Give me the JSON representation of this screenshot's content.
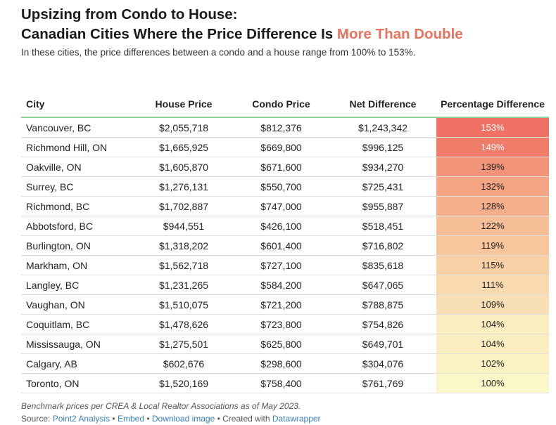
{
  "title_line1": "Upsizing from Condo to House:",
  "title_line2_start": "Canadian Cities Where the Price Difference Is ",
  "title_line2_highlight": "More Than Double",
  "subtitle": "In these cities, the price differences between a condo and a house range from 100% to 153%.",
  "colors": {
    "highlight": "#e8735f",
    "header_rule": "#8fd4a0",
    "heat_high": "#ef7264",
    "heat_low": "#fbf7c8",
    "link": "#3b7fc4"
  },
  "chart_data": {
    "type": "table",
    "columns": [
      "City",
      "House Price",
      "Condo Price",
      "Net Difference",
      "Percentage Difference"
    ],
    "rows": [
      {
        "city": "Vancouver, BC",
        "house": "$2,055,718",
        "condo": "$812,376",
        "net": "$1,243,342",
        "pct": "153%",
        "pct_value": 153
      },
      {
        "city": "Richmond Hill, ON",
        "house": "$1,665,925",
        "condo": "$669,800",
        "net": "$996,125",
        "pct": "149%",
        "pct_value": 149
      },
      {
        "city": "Oakville, ON",
        "house": "$1,605,870",
        "condo": "$671,600",
        "net": "$934,270",
        "pct": "139%",
        "pct_value": 139
      },
      {
        "city": "Surrey, BC",
        "house": "$1,276,131",
        "condo": "$550,700",
        "net": "$725,431",
        "pct": "132%",
        "pct_value": 132
      },
      {
        "city": "Richmond, BC",
        "house": "$1,702,887",
        "condo": "$747,000",
        "net": "$955,887",
        "pct": "128%",
        "pct_value": 128
      },
      {
        "city": "Abbotsford, BC",
        "house": "$944,551",
        "condo": "$426,100",
        "net": "$518,451",
        "pct": "122%",
        "pct_value": 122
      },
      {
        "city": "Burlington, ON",
        "house": "$1,318,202",
        "condo": "$601,400",
        "net": "$716,802",
        "pct": "119%",
        "pct_value": 119
      },
      {
        "city": "Markham, ON",
        "house": "$1,562,718",
        "condo": "$727,100",
        "net": "$835,618",
        "pct": "115%",
        "pct_value": 115
      },
      {
        "city": "Langley, BC",
        "house": "$1,231,265",
        "condo": "$584,200",
        "net": "$647,065",
        "pct": "111%",
        "pct_value": 111
      },
      {
        "city": "Vaughan, ON",
        "house": "$1,510,075",
        "condo": "$721,200",
        "net": "$788,875",
        "pct": "109%",
        "pct_value": 109
      },
      {
        "city": "Coquitlam, BC",
        "house": "$1,478,626",
        "condo": "$723,800",
        "net": "$754,826",
        "pct": "104%",
        "pct_value": 104
      },
      {
        "city": "Mississauga, ON",
        "house": "$1,275,501",
        "condo": "$625,800",
        "net": "$649,701",
        "pct": "104%",
        "pct_value": 104
      },
      {
        "city": "Calgary, AB",
        "house": "$602,676",
        "condo": "$298,600",
        "net": "$304,076",
        "pct": "102%",
        "pct_value": 102
      },
      {
        "city": "Toronto, ON",
        "house": "$1,520,169",
        "condo": "$758,400",
        "net": "$761,769",
        "pct": "100%",
        "pct_value": 100
      }
    ],
    "color_scale_range": [
      100,
      153
    ]
  },
  "notes": "Benchmark prices per CREA & Local Realtor Associations as of May 2023.",
  "source": {
    "prefix": "Source: ",
    "source_link": "Point2 Analysis",
    "sep1": " • ",
    "embed_link": "Embed",
    "sep2": " • ",
    "download_link": "Download image",
    "sep3": " • ",
    "created_text": "Created with ",
    "datawrapper_link": "Datawrapper"
  }
}
